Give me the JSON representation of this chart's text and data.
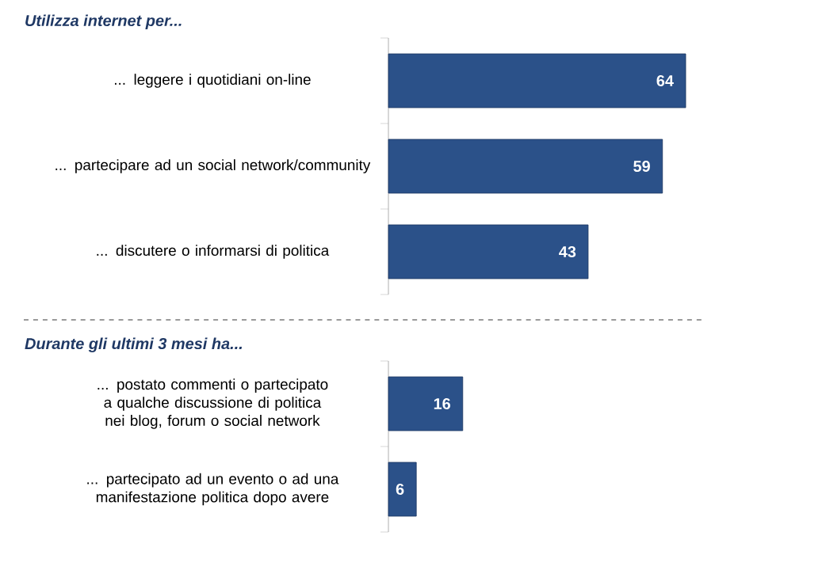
{
  "chart_data": [
    {
      "type": "bar",
      "orientation": "horizontal",
      "title": "Utilizza internet per...",
      "categories": [
        "... leggere i quotidiani on-line",
        "... partecipare ad un social network/community",
        "... discutere o informarsi di politica"
      ],
      "values": [
        64,
        59,
        43
      ],
      "color": "#2b5189",
      "data_labels": true
    },
    {
      "type": "bar",
      "orientation": "horizontal",
      "title": "Durante gli ultimi 3 mesi ha...",
      "categories": [
        "... postato commenti o partecipato a qualche discussione di politica nei blog, forum o social network",
        "... partecipato ad un evento o ad una manifestazione politica dopo avere"
      ],
      "values": [
        16,
        6
      ],
      "color": "#2b5189",
      "data_labels": true
    }
  ]
}
